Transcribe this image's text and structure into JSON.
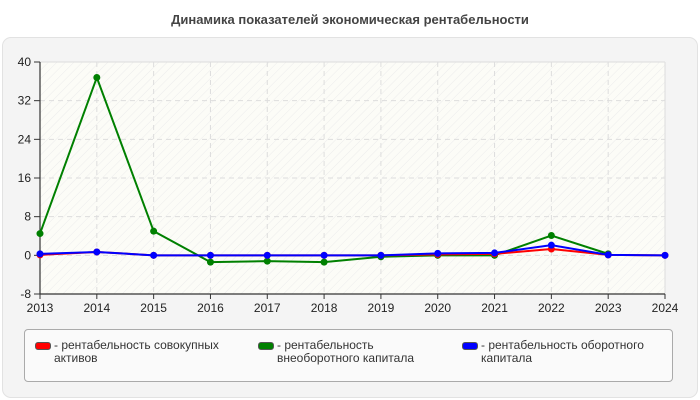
{
  "title": "Динамика показателей экономическая рентабельности",
  "chart_data": {
    "type": "line",
    "title": "Динамика показателей экономическая рентабельности",
    "xlabel": "",
    "ylabel": "",
    "x": [
      2013,
      2014,
      2015,
      2016,
      2017,
      2018,
      2019,
      2020,
      2021,
      2022,
      2023,
      2024
    ],
    "ylim": [
      -8,
      40
    ],
    "yticks": [
      -8,
      0,
      8,
      16,
      24,
      32,
      40
    ],
    "grid": true,
    "legend_position": "bottom",
    "series": [
      {
        "name": "рентабельность совокупных активов",
        "color": "#ff0000",
        "values": [
          0.1,
          0.7,
          0.0,
          0.0,
          0.0,
          0.0,
          0.0,
          0.2,
          0.3,
          1.3,
          0.1,
          0.0
        ]
      },
      {
        "name": "рентабельность внеоборотного капитала",
        "color": "#008000",
        "values": [
          4.5,
          36.8,
          5.0,
          -1.4,
          -1.2,
          -1.4,
          -0.3,
          0.0,
          0.0,
          4.1,
          0.3,
          null
        ]
      },
      {
        "name": "рентабельность оборотного капитала",
        "color": "#0000ff",
        "values": [
          0.3,
          0.7,
          0.0,
          0.0,
          0.0,
          0.0,
          0.0,
          0.4,
          0.5,
          2.1,
          0.1,
          0.0
        ]
      }
    ]
  },
  "legend": {
    "items": [
      {
        "label": "- рентабельность совокупных активов",
        "color": "#ff0000"
      },
      {
        "label": "- рентабельность внеоборотного капитала",
        "color": "#008000"
      },
      {
        "label": "- рентабельность оборотного капитала",
        "color": "#0000ff"
      }
    ]
  }
}
